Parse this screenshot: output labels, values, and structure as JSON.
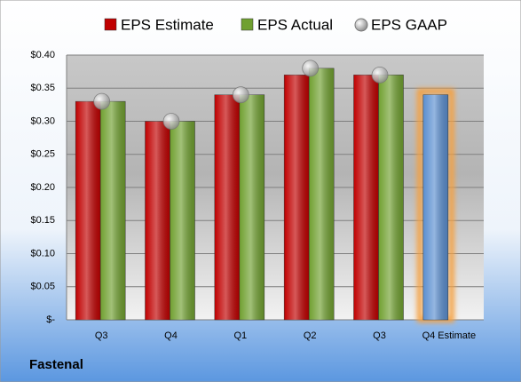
{
  "chart_data": {
    "type": "bar",
    "categories": [
      "Q3",
      "Q4",
      "Q1",
      "Q2",
      "Q3",
      "Q4 Estimate"
    ],
    "series": [
      {
        "name": "EPS Estimate",
        "color": "#c00000",
        "values": [
          0.33,
          0.3,
          0.34,
          0.37,
          0.37,
          0.34
        ],
        "colors": [
          "#c00000",
          "#c00000",
          "#c00000",
          "#c00000",
          "#c00000",
          "#5b8fd0"
        ]
      },
      {
        "name": "EPS Actual",
        "color": "#70a030",
        "values": [
          0.33,
          0.3,
          0.34,
          0.38,
          0.37,
          null
        ]
      },
      {
        "name": "EPS GAAP",
        "color": "#a6a6a6",
        "marker": "circle",
        "values": [
          0.33,
          0.3,
          0.34,
          0.38,
          0.37,
          null
        ]
      }
    ],
    "ylim": [
      0,
      0.4
    ],
    "yticks": [
      {
        "value": 0,
        "label": "$-"
      },
      {
        "value": 0.05,
        "label": "$0.05"
      },
      {
        "value": 0.1,
        "label": "$0.10"
      },
      {
        "value": 0.15,
        "label": "$0.15"
      },
      {
        "value": 0.2,
        "label": "$0.20"
      },
      {
        "value": 0.25,
        "label": "$0.25"
      },
      {
        "value": 0.3,
        "label": "$0.30"
      },
      {
        "value": 0.35,
        "label": "$0.35"
      },
      {
        "value": 0.4,
        "label": "$0.40"
      }
    ],
    "grid": true,
    "legend": "top",
    "footer": "Fastenal"
  }
}
